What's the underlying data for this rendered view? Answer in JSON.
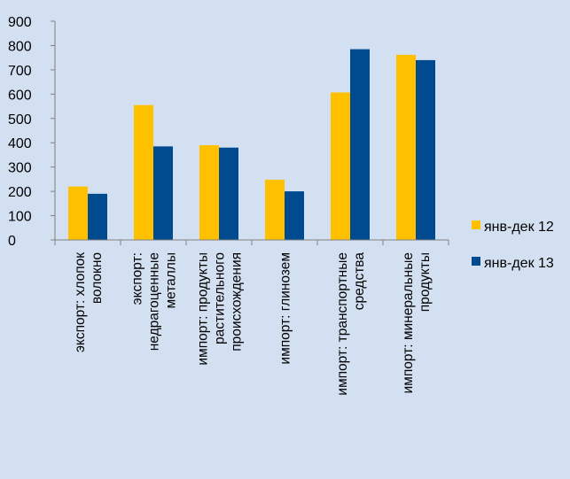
{
  "chart_data": {
    "type": "bar",
    "categories": [
      [
        "экспорт: хлопок",
        "волокно"
      ],
      [
        "экспорт:",
        "недрагоценные",
        "металлы"
      ],
      [
        "импорт: продукты",
        "растительного",
        "происхождения"
      ],
      [
        "импорт: глинозем"
      ],
      [
        "импорт: транспортные",
        "средства"
      ],
      [
        "импорт: минеральные",
        "продукты"
      ]
    ],
    "series": [
      {
        "name": "янв-дек 12",
        "color": "#ffc000",
        "values": [
          220,
          555,
          390,
          248,
          607,
          762
        ]
      },
      {
        "name": "янв-дек 13",
        "color": "#004a8f",
        "values": [
          190,
          385,
          380,
          200,
          785,
          740
        ]
      }
    ],
    "ylim": [
      0,
      900
    ],
    "yticks": [
      "0",
      "100",
      "200",
      "300",
      "400",
      "500",
      "600",
      "700",
      "800",
      "900"
    ],
    "grid": false,
    "legend_position": "right",
    "colors": {
      "background": "#d3e0f1",
      "axis": "#808080"
    }
  }
}
